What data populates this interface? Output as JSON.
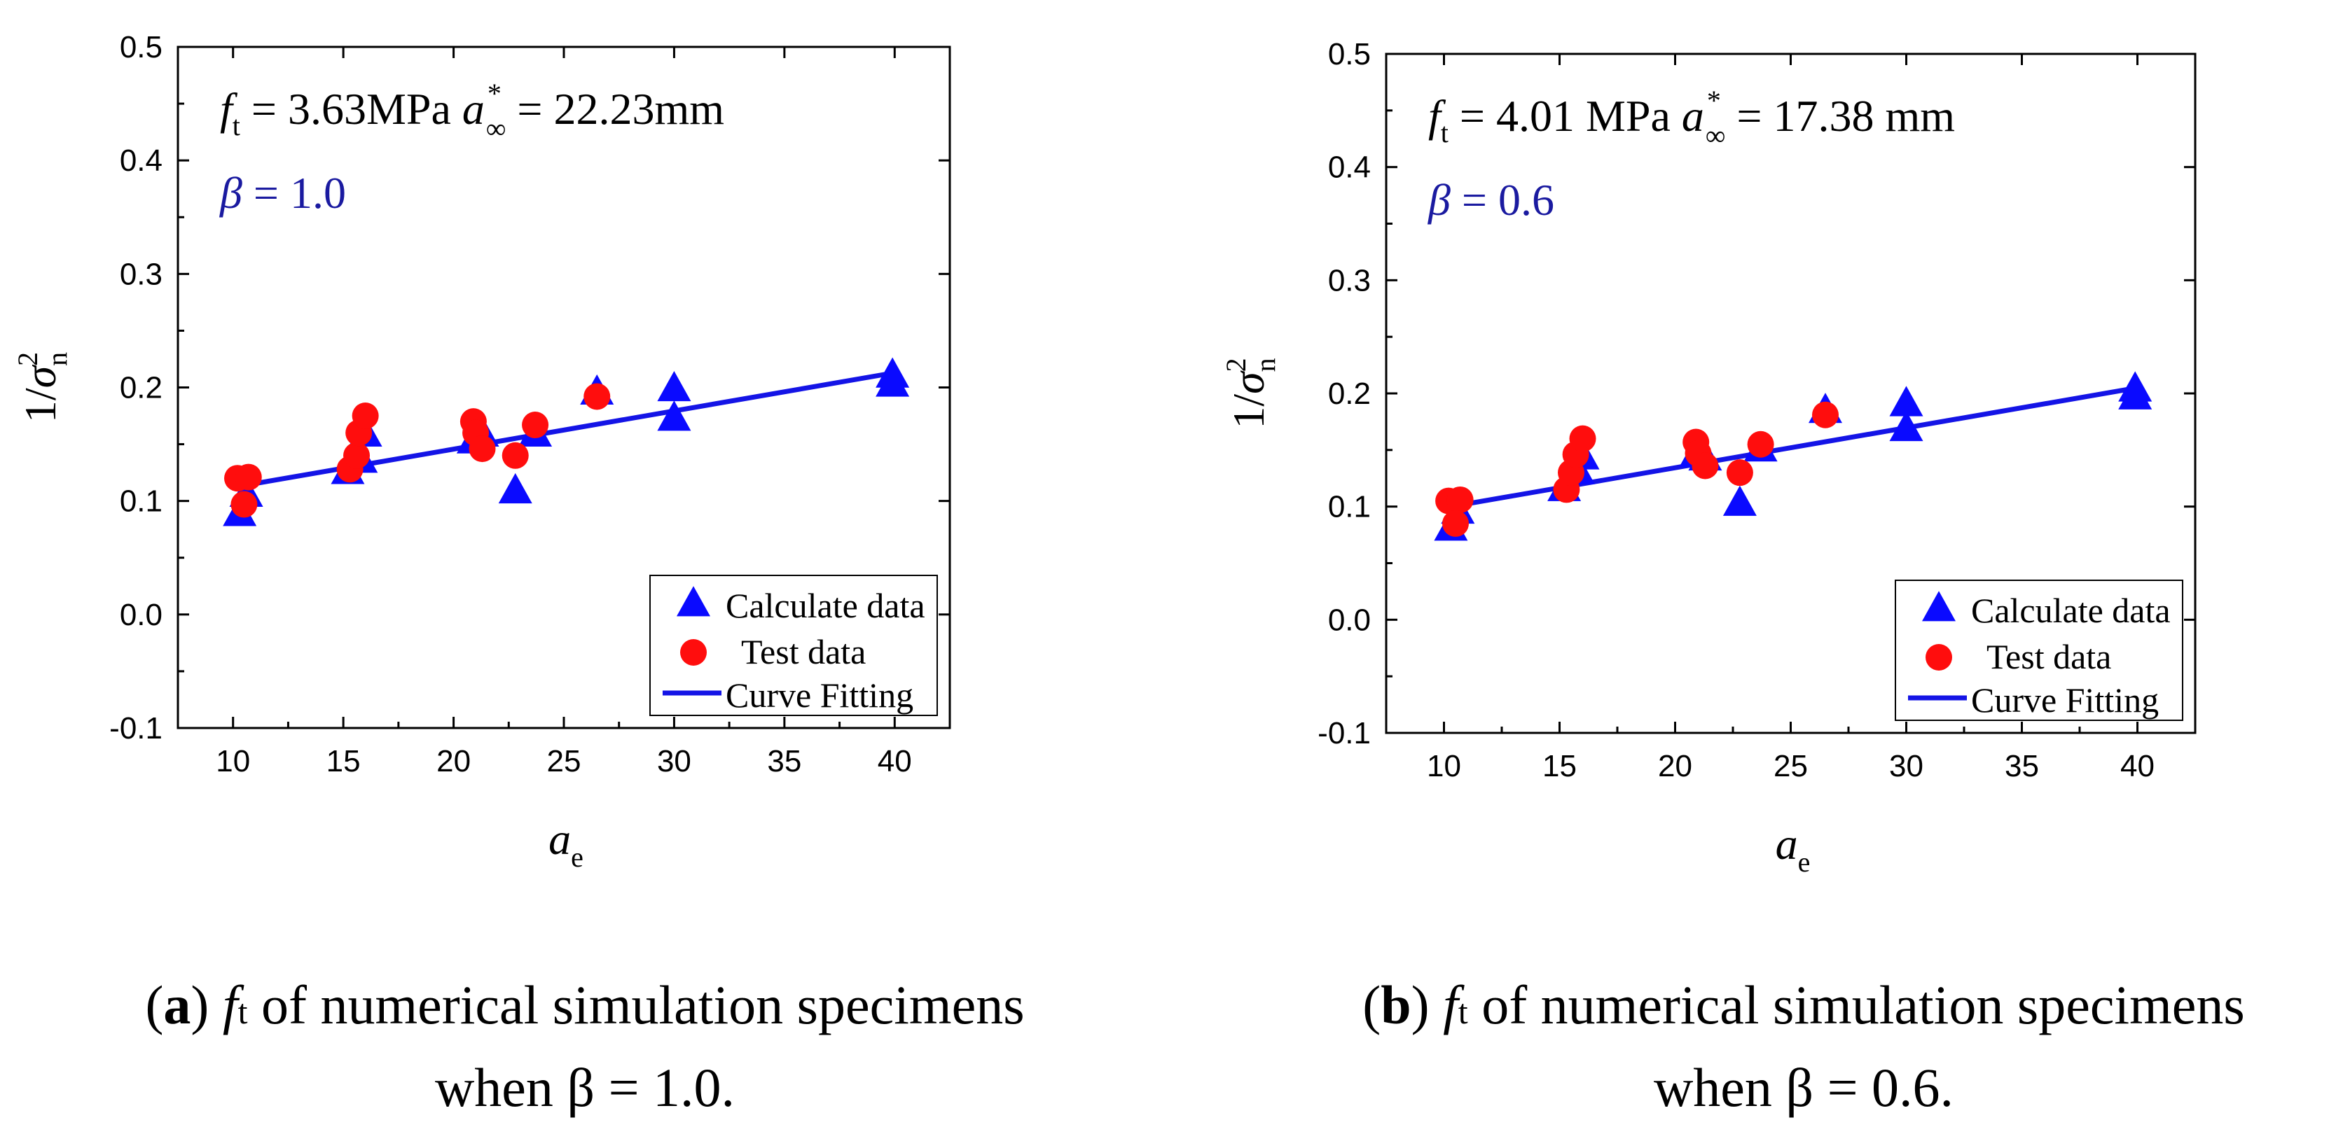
{
  "chart_data": [
    {
      "type": "scatter",
      "panel": "a",
      "xlabel": "a",
      "xlabel_sub": "e",
      "ylabel": "1/σ",
      "ylabel_sup": "2",
      "ylabel_sub": "n",
      "xlim": [
        7.5,
        42.5
      ],
      "ylim": [
        -0.1,
        0.5
      ],
      "xticks": [
        "10",
        "15",
        "20",
        "25",
        "30",
        "35",
        "40"
      ],
      "yticks": [
        "-0.1",
        "0.0",
        "0.1",
        "0.2",
        "0.3",
        "0.4",
        "0.5"
      ],
      "annotation": {
        "ft_symbol": "f",
        "ft_sub": "t",
        "ft_text": " = 3.63MPa",
        "a_symbol": "a",
        "a_sup": "*",
        "a_sub": "∞",
        "a_text": " = 22.23mm",
        "beta_symbol": "β",
        "beta_text": " = 1.0"
      },
      "legend": [
        "Calculate data",
        "Test data",
        "Curve Fitting"
      ],
      "calculate_data": [
        {
          "x": 10.3,
          "y": 0.088
        },
        {
          "x": 10.6,
          "y": 0.105
        },
        {
          "x": 15.2,
          "y": 0.125
        },
        {
          "x": 15.8,
          "y": 0.135
        },
        {
          "x": 16.0,
          "y": 0.158
        },
        {
          "x": 20.9,
          "y": 0.152
        },
        {
          "x": 21.3,
          "y": 0.158
        },
        {
          "x": 22.8,
          "y": 0.108
        },
        {
          "x": 23.7,
          "y": 0.158
        },
        {
          "x": 26.5,
          "y": 0.195
        },
        {
          "x": 30.0,
          "y": 0.172
        },
        {
          "x": 30.0,
          "y": 0.198
        },
        {
          "x": 39.9,
          "y": 0.202
        },
        {
          "x": 39.9,
          "y": 0.21
        }
      ],
      "test_data": [
        {
          "x": 10.2,
          "y": 0.12
        },
        {
          "x": 10.7,
          "y": 0.121
        },
        {
          "x": 10.5,
          "y": 0.097
        },
        {
          "x": 15.3,
          "y": 0.128
        },
        {
          "x": 15.6,
          "y": 0.14
        },
        {
          "x": 15.7,
          "y": 0.16
        },
        {
          "x": 16.0,
          "y": 0.175
        },
        {
          "x": 20.9,
          "y": 0.17
        },
        {
          "x": 21.0,
          "y": 0.16
        },
        {
          "x": 21.3,
          "y": 0.146
        },
        {
          "x": 22.8,
          "y": 0.14
        },
        {
          "x": 23.7,
          "y": 0.167
        },
        {
          "x": 26.5,
          "y": 0.192
        }
      ],
      "fit_line": [
        {
          "x": 10.3,
          "y": 0.113
        },
        {
          "x": 40.0,
          "y": 0.213
        }
      ],
      "caption": {
        "label": "a",
        "symbol": "f",
        "sub": "t",
        "line1": " of numerical simulation specimens",
        "line2": "when β = 1.0."
      }
    },
    {
      "type": "scatter",
      "panel": "b",
      "xlabel": "a",
      "xlabel_sub": "e",
      "ylabel": "1/σ",
      "ylabel_sup": "2",
      "ylabel_sub": "n",
      "xlim": [
        7.5,
        42.5
      ],
      "ylim": [
        -0.1,
        0.5
      ],
      "xticks": [
        "10",
        "15",
        "20",
        "25",
        "30",
        "35",
        "40"
      ],
      "yticks": [
        "-0.1",
        "0.0",
        "0.1",
        "0.2",
        "0.3",
        "0.4",
        "0.5"
      ],
      "annotation": {
        "ft_symbol": "f",
        "ft_sub": "t",
        "ft_text": " = 4.01 MPa",
        "a_symbol": "a",
        "a_sup": "*",
        "a_sub": "∞",
        "a_text": " = 17.38 mm",
        "beta_symbol": "β",
        "beta_text": " = 0.6"
      },
      "legend": [
        "Calculate data",
        "Test data",
        "Curve Fitting"
      ],
      "calculate_data": [
        {
          "x": 10.3,
          "y": 0.08
        },
        {
          "x": 10.6,
          "y": 0.095
        },
        {
          "x": 15.2,
          "y": 0.115
        },
        {
          "x": 15.8,
          "y": 0.13
        },
        {
          "x": 16.0,
          "y": 0.143
        },
        {
          "x": 20.9,
          "y": 0.145
        },
        {
          "x": 21.3,
          "y": 0.142
        },
        {
          "x": 22.8,
          "y": 0.102
        },
        {
          "x": 23.7,
          "y": 0.15
        },
        {
          "x": 26.5,
          "y": 0.184
        },
        {
          "x": 30.0,
          "y": 0.168
        },
        {
          "x": 30.0,
          "y": 0.19
        },
        {
          "x": 39.9,
          "y": 0.196
        },
        {
          "x": 39.9,
          "y": 0.203
        }
      ],
      "test_data": [
        {
          "x": 10.2,
          "y": 0.105
        },
        {
          "x": 10.7,
          "y": 0.106
        },
        {
          "x": 10.5,
          "y": 0.085
        },
        {
          "x": 15.3,
          "y": 0.115
        },
        {
          "x": 15.5,
          "y": 0.13
        },
        {
          "x": 15.7,
          "y": 0.146
        },
        {
          "x": 16.0,
          "y": 0.16
        },
        {
          "x": 20.9,
          "y": 0.157
        },
        {
          "x": 21.0,
          "y": 0.147
        },
        {
          "x": 21.3,
          "y": 0.136
        },
        {
          "x": 22.8,
          "y": 0.13
        },
        {
          "x": 23.7,
          "y": 0.155
        },
        {
          "x": 26.5,
          "y": 0.181
        }
      ],
      "fit_line": [
        {
          "x": 10.3,
          "y": 0.1
        },
        {
          "x": 40.0,
          "y": 0.205
        }
      ],
      "caption": {
        "label": "b",
        "symbol": "f",
        "sub": "t",
        "line1": " of numerical simulation specimens",
        "line2": "when β = 0.6."
      }
    }
  ],
  "colors": {
    "calculate": "#0a0aff",
    "test": "#ff0d0d",
    "fit": "#1414e6",
    "beta": "#1a1aa0"
  }
}
